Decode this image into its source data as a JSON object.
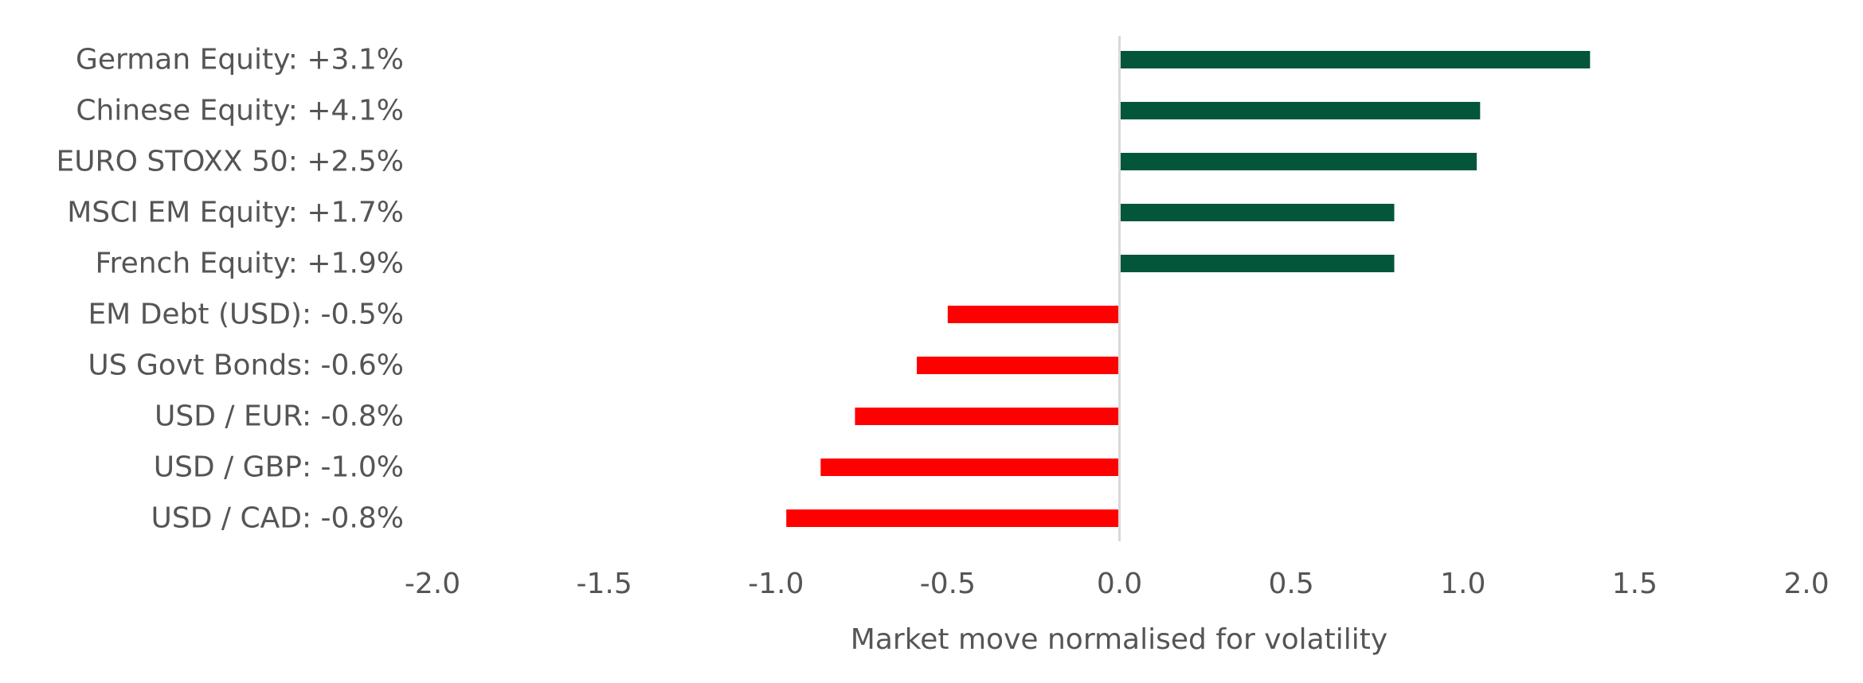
{
  "chart_data": {
    "type": "bar",
    "orientation": "horizontal",
    "categories": [
      "German Equity: +3.1%",
      "Chinese Equity: +4.1%",
      "EURO STOXX 50: +2.5%",
      "MSCI EM Equity: +1.7%",
      "French Equity: +1.9%",
      "EM Debt (USD): -0.5%",
      "US Govt Bonds: -0.6%",
      "USD / EUR: -0.8%",
      "USD / GBP: -1.0%",
      "USD / CAD: -0.8%"
    ],
    "values": [
      1.37,
      1.05,
      1.04,
      0.8,
      0.8,
      -0.5,
      -0.59,
      -0.77,
      -0.87,
      -0.97
    ],
    "xlabel": "Market move normalised for volatility",
    "ylabel": "",
    "xlim": [
      -2.0,
      2.0
    ],
    "x_ticks": [
      "-2.0",
      "-1.5",
      "-1.0",
      "-0.5",
      "0.0",
      "0.5",
      "1.0",
      "1.5",
      "2.0"
    ],
    "x_tick_values": [
      -2.0,
      -1.5,
      -1.0,
      -0.5,
      0.0,
      0.5,
      1.0,
      1.5,
      2.0
    ],
    "grid": false,
    "legend": "none",
    "colors": {
      "positive": "#04563A",
      "negative": "#FF0000",
      "zero_line": "#D9D9D9",
      "text": "#555555"
    }
  }
}
